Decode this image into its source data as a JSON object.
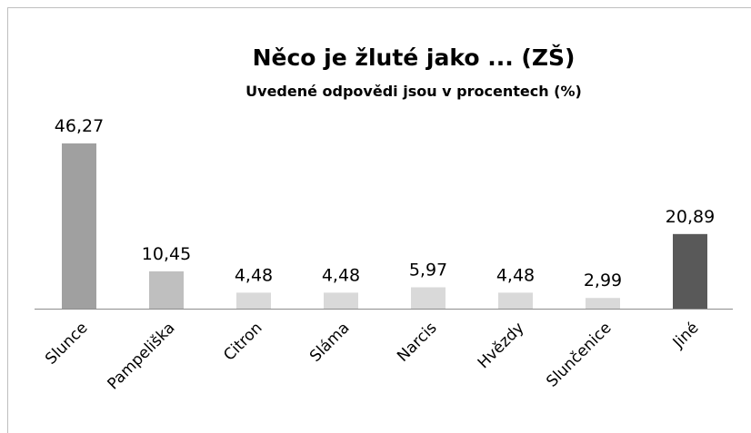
{
  "chart_data": {
    "type": "bar",
    "title": "Něco je žluté jako ... (ZŠ)",
    "subtitle": "Uvedené odpovědi jsou v procentech (%)",
    "categories": [
      "Slunce",
      "Pampeliška",
      "Citron",
      "Sláma",
      "Narcis",
      "Hvězdy",
      "Slunčenice",
      "Jiné"
    ],
    "values": [
      46.27,
      10.45,
      4.48,
      4.48,
      5.97,
      4.48,
      2.99,
      20.89
    ],
    "value_labels": [
      "46,27",
      "10,45",
      "4,48",
      "4,48",
      "5,97",
      "4,48",
      "2,99",
      "20,89"
    ],
    "colors": [
      "#a0a0a0",
      "#bfbfbf",
      "#d9d9d9",
      "#d9d9d9",
      "#d9d9d9",
      "#d9d9d9",
      "#d9d9d9",
      "#595959"
    ]
  }
}
